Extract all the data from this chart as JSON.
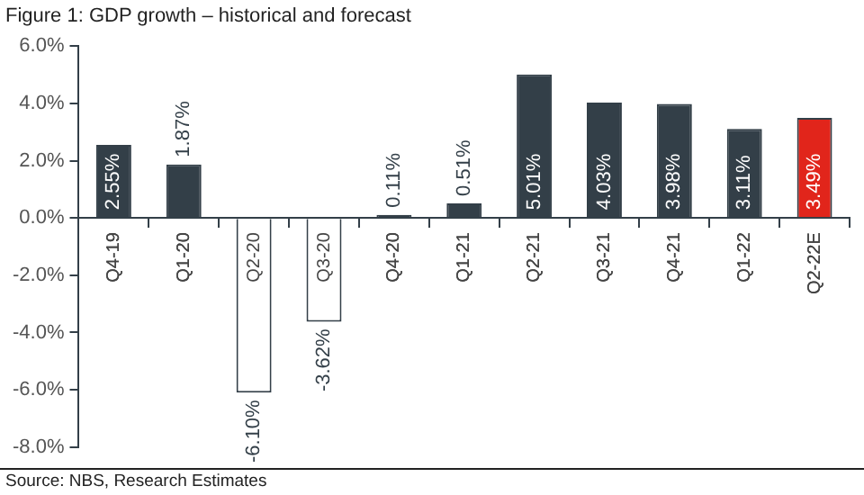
{
  "chart_data": {
    "type": "bar",
    "title": "Figure 1: GDP growth – historical and forecast",
    "categories": [
      "Q4-19",
      "Q1-20",
      "Q2-20",
      "Q3-20",
      "Q4-20",
      "Q1-21",
      "Q2-21",
      "Q3-21",
      "Q4-21",
      "Q1-22",
      "Q2-22E"
    ],
    "values": [
      2.55,
      1.87,
      -6.1,
      -3.62,
      0.11,
      0.51,
      5.01,
      4.03,
      3.98,
      3.11,
      3.49
    ],
    "colors": [
      "#333f48",
      "#333f48",
      "#ffffff",
      "#ffffff",
      "#333f48",
      "#333f48",
      "#333f48",
      "#333f48",
      "#333f48",
      "#333f48",
      "#e1251b"
    ],
    "value_labels": [
      "2.55%",
      "1.87%",
      "-6.10%",
      "-3.62%",
      "0.11%",
      "0.51%",
      "5.01%",
      "4.03%",
      "3.98%",
      "3.11%",
      "3.49%"
    ],
    "ylim": [
      -8,
      6
    ],
    "yticks": [
      {
        "value": -8,
        "label": "-8.0%"
      },
      {
        "value": -6,
        "label": "-6.0%"
      },
      {
        "value": -4,
        "label": "-4.0%"
      },
      {
        "value": -2,
        "label": "-2.0%"
      },
      {
        "value": 0,
        "label": "0.0%"
      },
      {
        "value": 2,
        "label": "2.0%"
      },
      {
        "value": 4,
        "label": "4.0%"
      },
      {
        "value": 6,
        "label": "6.0%"
      }
    ],
    "grid": false,
    "legend": false,
    "annotations": [
      "Source: NBS, Research Estimates"
    ]
  }
}
